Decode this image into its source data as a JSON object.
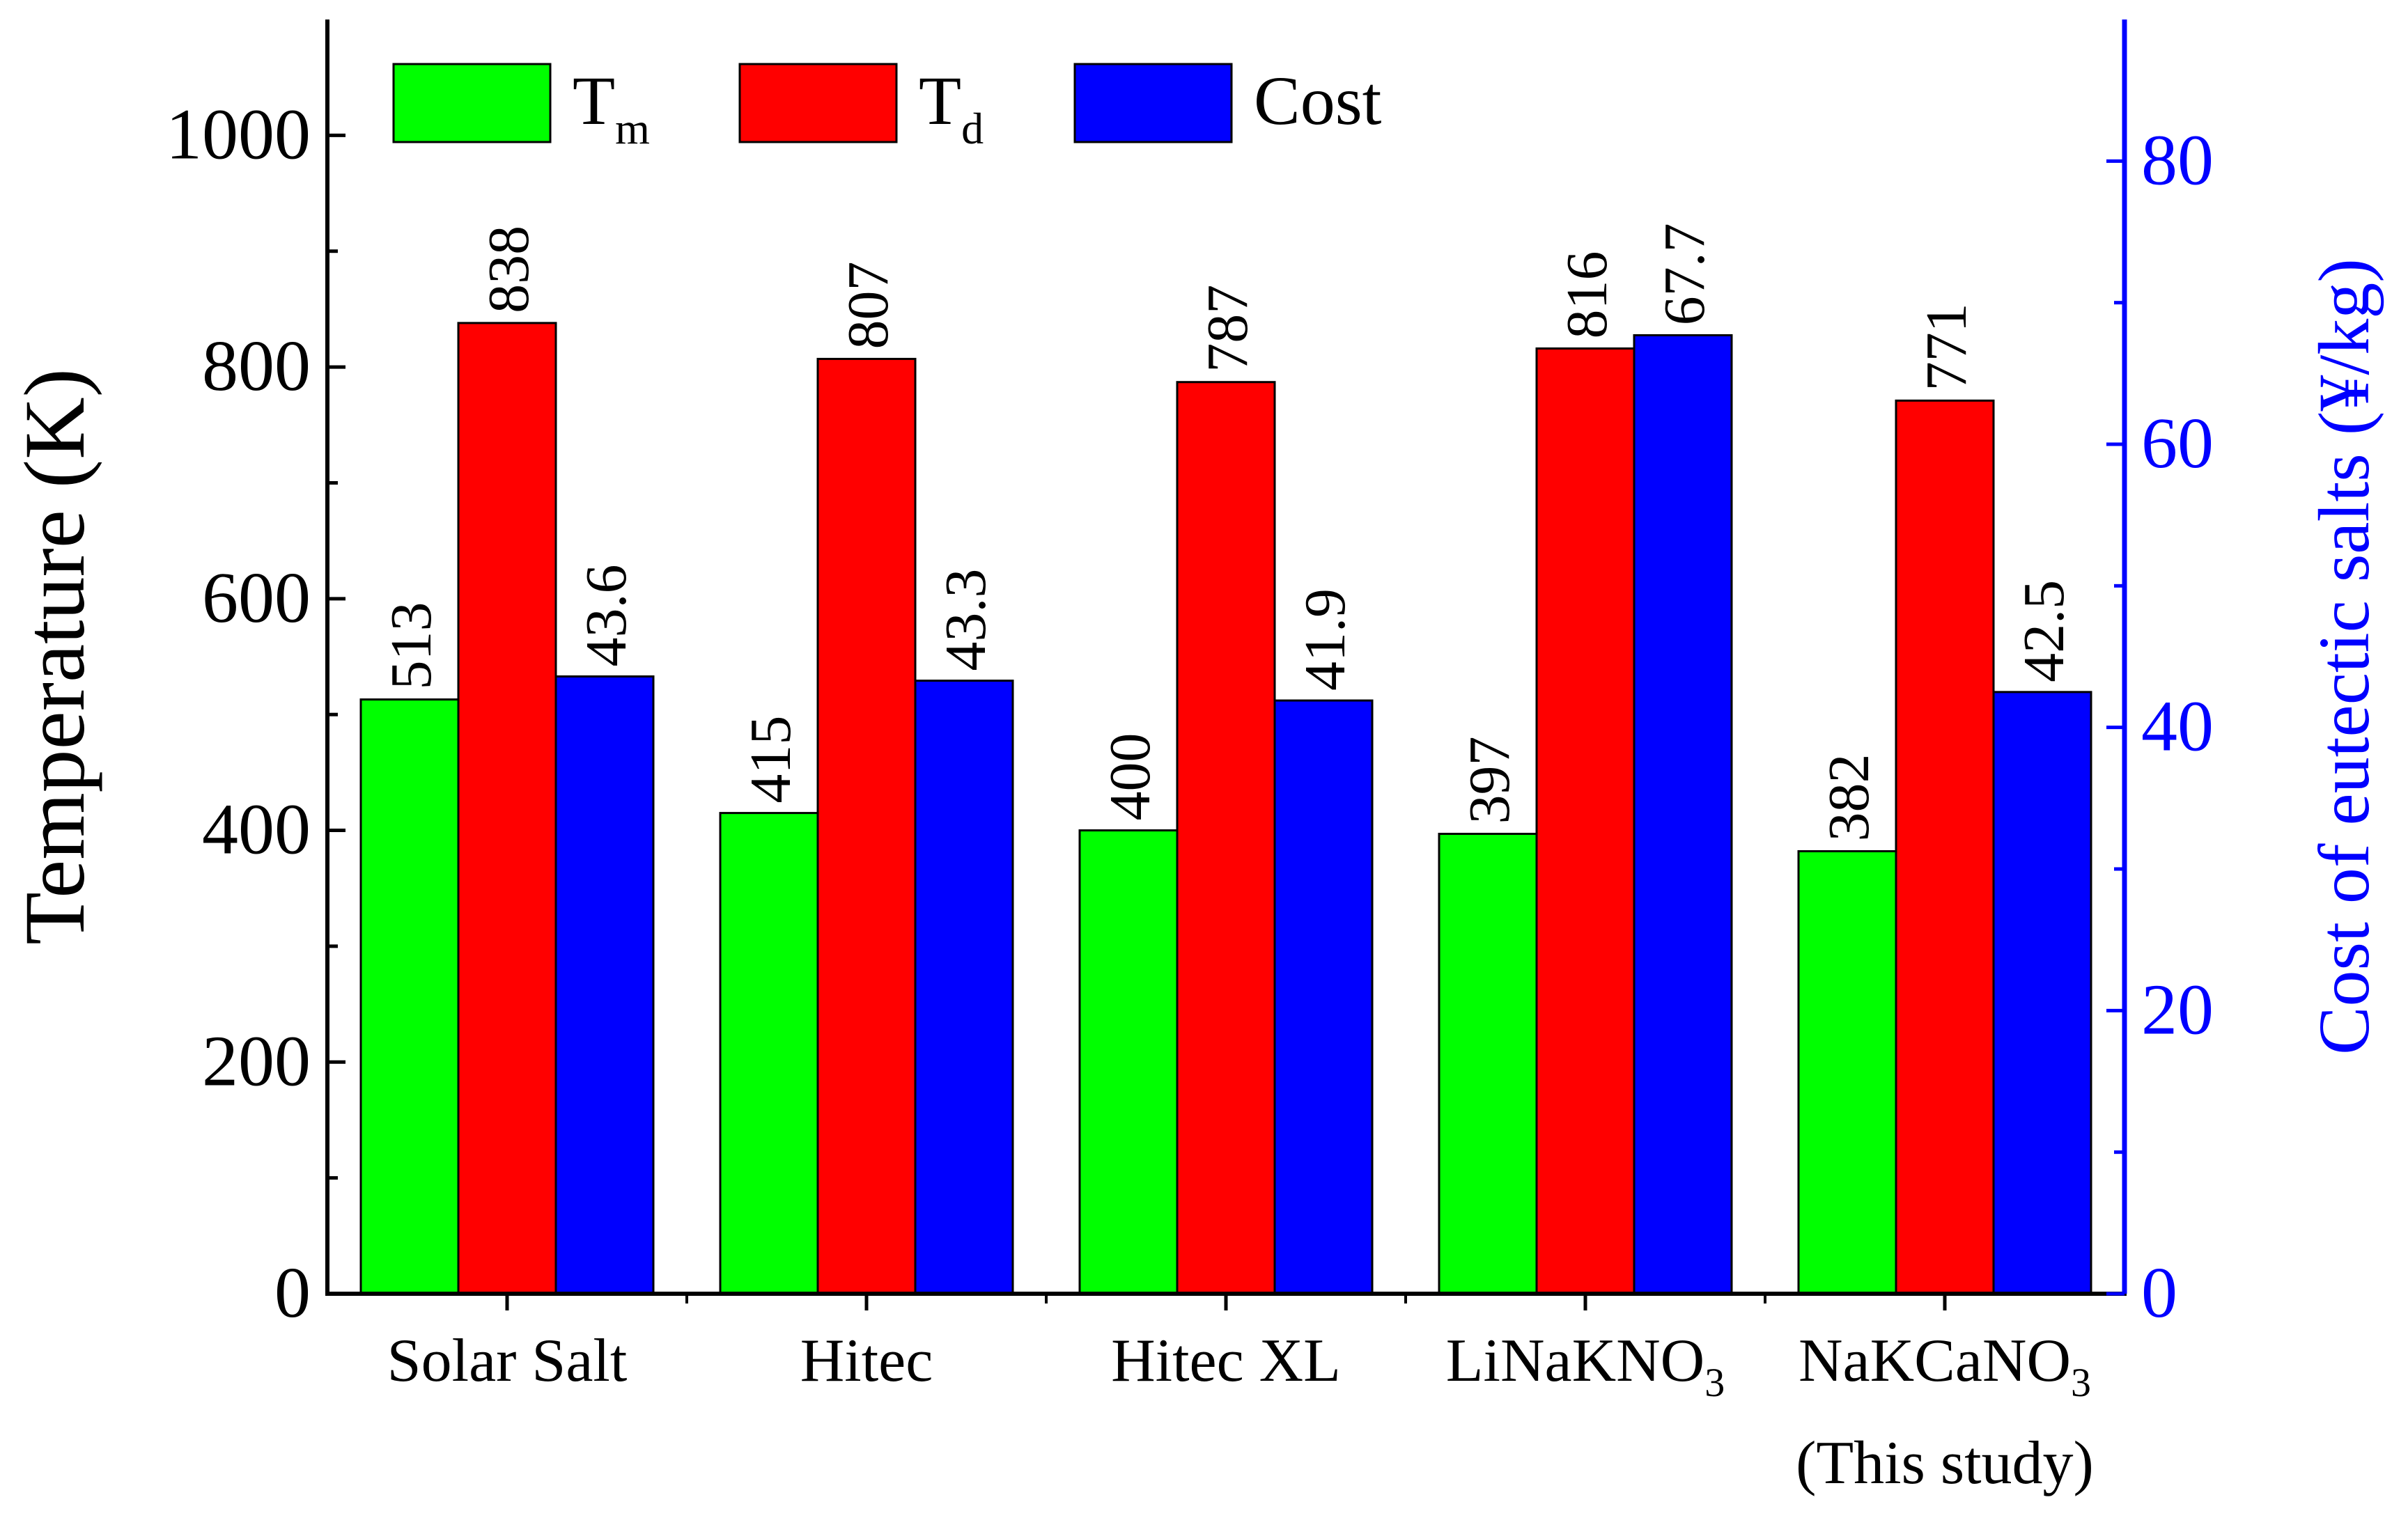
{
  "chart_data": {
    "type": "bar",
    "categories": [
      "Solar Salt",
      "Hitec",
      "Hitec XL",
      "LiNaKNO3",
      "NaKCaNO3"
    ],
    "category_labels": [
      {
        "main": "Solar Salt",
        "sub": "",
        "line2": ""
      },
      {
        "main": "Hitec",
        "sub": "",
        "line2": ""
      },
      {
        "main": "Hitec XL",
        "sub": "",
        "line2": ""
      },
      {
        "main": "LiNaKNO",
        "sub": "3",
        "line2": ""
      },
      {
        "main": "NaKCaNO",
        "sub": "3",
        "line2": "(This study)"
      }
    ],
    "series": [
      {
        "name": "Tm",
        "legend_main": "T",
        "legend_sub": "m",
        "axis": "left",
        "color": "#00ff00",
        "values": [
          513,
          415,
          400,
          397,
          382
        ],
        "labels": [
          "513",
          "415",
          "400",
          "397",
          "382"
        ]
      },
      {
        "name": "Td",
        "legend_main": "T",
        "legend_sub": "d",
        "axis": "left",
        "color": "#ff0000",
        "values": [
          838,
          807,
          787,
          816,
          771
        ],
        "labels": [
          "838",
          "807",
          "787",
          "816",
          "771"
        ]
      },
      {
        "name": "Cost",
        "legend_main": "Cost",
        "legend_sub": "",
        "axis": "right",
        "color": "#0000ff",
        "values": [
          43.6,
          43.3,
          41.9,
          67.7,
          42.5
        ],
        "labels": [
          "43.6",
          "43.3",
          "41.9",
          "67.7",
          "42.5"
        ]
      }
    ],
    "ylabel": "Temperature (K)",
    "ylim": [
      0,
      1100
    ],
    "yticks": [
      0,
      200,
      400,
      600,
      800,
      1000
    ],
    "yticklabels": [
      "0",
      "200",
      "400",
      "600",
      "800",
      "1000"
    ],
    "y2label": "Cost of eutectic salts (¥/kg)",
    "y2lim": [
      0,
      90
    ],
    "y2ticks": [
      0,
      20,
      40,
      60,
      80
    ],
    "y2ticklabels": [
      "0",
      "20",
      "40",
      "60",
      "80"
    ],
    "y2color": "#0000ff",
    "legend_position": "top-left",
    "grid": false
  }
}
